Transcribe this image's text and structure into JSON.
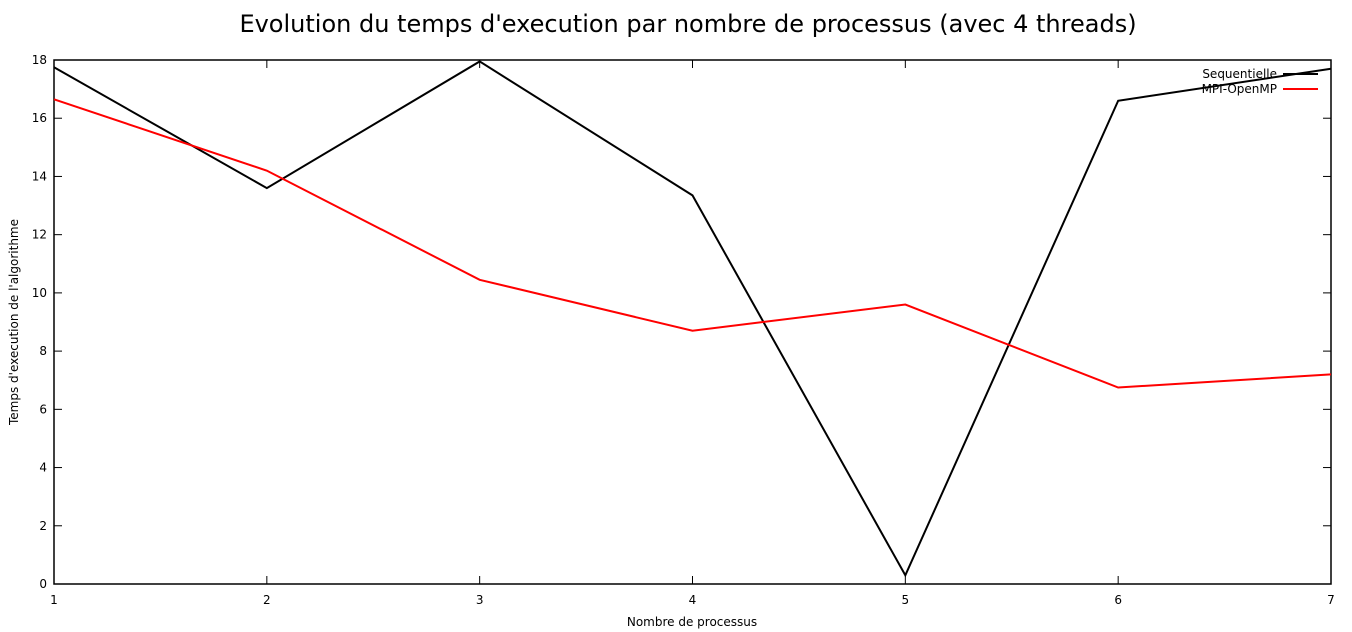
{
  "chart_data": {
    "type": "line",
    "title": "Evolution du temps d'execution par nombre de processus (avec 4 threads)",
    "xlabel": "Nombre de processus",
    "ylabel": "Temps d'execution de l'algorithme",
    "x": [
      1,
      2,
      3,
      4,
      5,
      6,
      7
    ],
    "xlim": [
      1,
      7
    ],
    "ylim": [
      0,
      18
    ],
    "xticks": [
      "1",
      "2",
      "3",
      "4",
      "5",
      "6",
      "7"
    ],
    "yticks": [
      "0",
      "2",
      "4",
      "6",
      "8",
      "10",
      "12",
      "14",
      "16",
      "18"
    ],
    "grid": false,
    "legend_position": "top-right",
    "series": [
      {
        "name": "Sequentielle",
        "color": "#000000",
        "values": [
          17.75,
          13.6,
          17.95,
          13.35,
          0.3,
          16.6,
          17.7
        ]
      },
      {
        "name": "MPI-OpenMP",
        "color": "#ff0000",
        "values": [
          16.65,
          14.2,
          10.45,
          8.7,
          9.6,
          6.75,
          7.2
        ]
      }
    ]
  }
}
